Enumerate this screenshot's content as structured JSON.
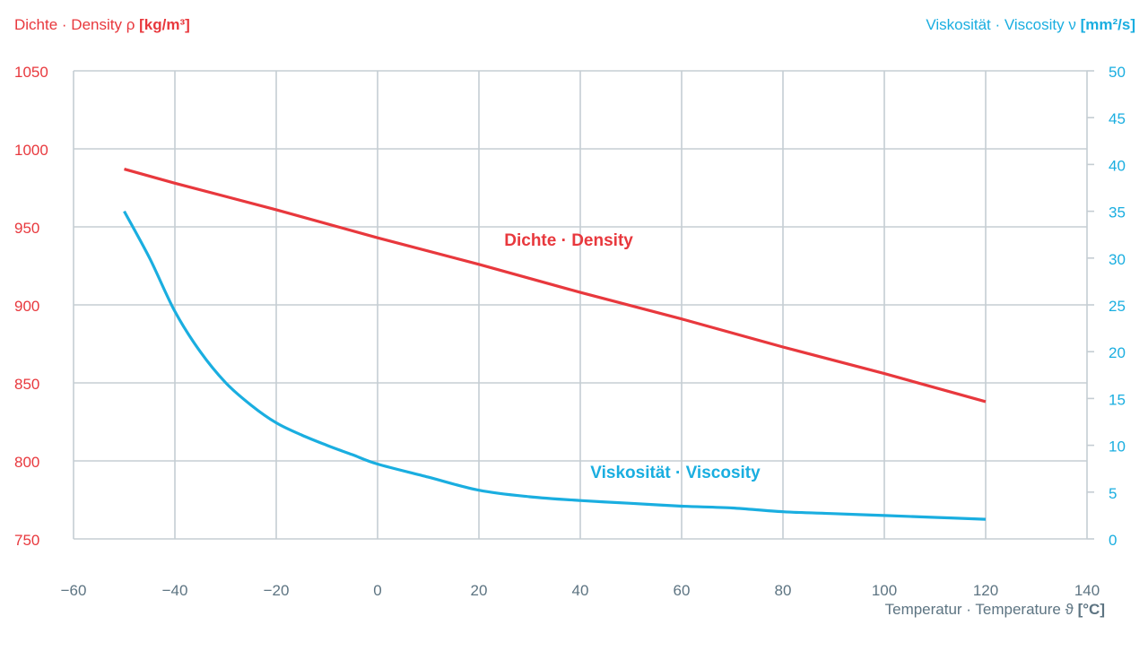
{
  "chart_data": {
    "type": "line",
    "colors": {
      "density": "#e8383d",
      "viscosity": "#1aaee0",
      "grid": "#c5cdd3",
      "axis": "#5d7482"
    },
    "left_axis": {
      "label_de": "Dichte · Density",
      "symbol": "ρ",
      "unit": "[kg/m³]",
      "ylim": [
        750,
        1050
      ],
      "ticks": [
        750,
        800,
        850,
        900,
        950,
        1000,
        1050
      ]
    },
    "right_axis": {
      "label_de": "Viskosität · Viscosity",
      "symbol": "ν",
      "unit": "[mm²/s]",
      "ylim": [
        0,
        50
      ],
      "ticks": [
        0,
        5,
        10,
        15,
        20,
        25,
        30,
        35,
        40,
        45,
        50
      ]
    },
    "x_axis": {
      "label": "Temperatur · Temperature",
      "symbol": "ϑ",
      "unit": "[°C]",
      "xlim": [
        -60,
        140
      ],
      "ticks": [
        -60,
        -40,
        -20,
        0,
        20,
        40,
        60,
        80,
        100,
        120,
        140
      ],
      "tick_labels": [
        "−60",
        "−40",
        "−20",
        "0",
        "20",
        "40",
        "60",
        "80",
        "100",
        "120",
        "140"
      ]
    },
    "series": [
      {
        "name": "Dichte · Density",
        "axis": "left",
        "x": [
          -50,
          -40,
          -20,
          0,
          20,
          40,
          60,
          80,
          100,
          120
        ],
        "y": [
          987,
          978,
          961,
          943,
          926,
          908,
          891,
          873,
          856,
          838
        ]
      },
      {
        "name": "Viskosität · Viscosity",
        "axis": "right",
        "x": [
          -50,
          -45,
          -40,
          -35,
          -30,
          -25,
          -20,
          -15,
          -10,
          -5,
          0,
          10,
          20,
          30,
          40,
          50,
          60,
          70,
          80,
          90,
          100,
          110,
          120
        ],
        "y": [
          35.0,
          30.0,
          24.3,
          20.0,
          16.7,
          14.3,
          12.4,
          11.1,
          10.0,
          9.0,
          8.0,
          6.6,
          5.2,
          4.5,
          4.1,
          3.8,
          3.5,
          3.3,
          2.9,
          2.7,
          2.5,
          2.3,
          2.1
        ]
      }
    ],
    "annotations": [
      {
        "text": "Dichte · Density",
        "series": "density",
        "x": 25,
        "y": 938
      },
      {
        "text": "Viskosität · Viscosity",
        "series": "viscosity",
        "x": 42,
        "y": 6.5
      }
    ]
  }
}
